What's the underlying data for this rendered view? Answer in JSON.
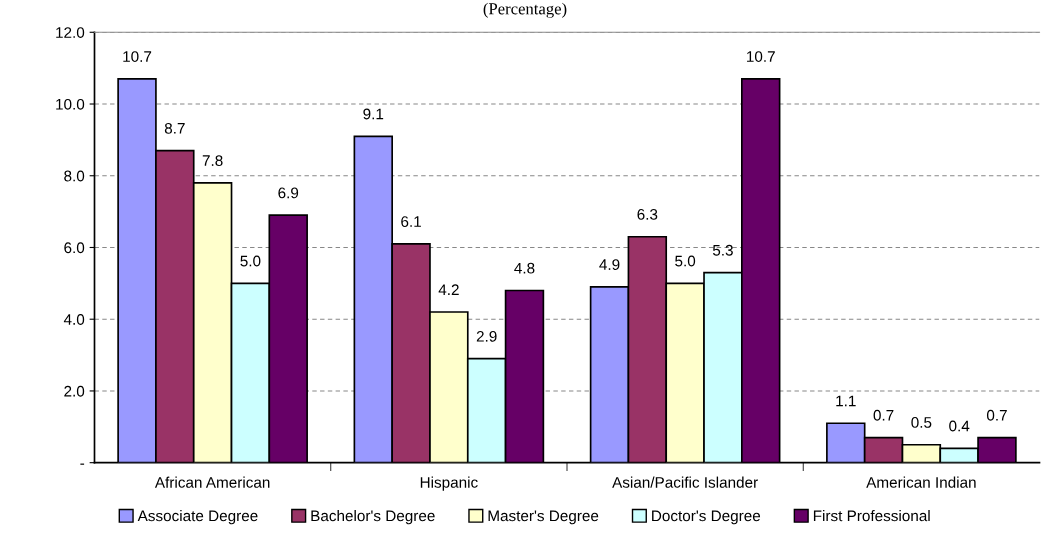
{
  "chart_data": {
    "type": "bar",
    "title": "(Percentage)",
    "categories": [
      "African American",
      "Hispanic",
      "Asian/Pacific Islander",
      "American Indian"
    ],
    "series": [
      {
        "name": "Associate Degree",
        "color": "#9999ff",
        "values": [
          10.7,
          9.1,
          4.9,
          1.1
        ],
        "value_labels": [
          "10.7",
          "9.1",
          "4.9",
          "1.1"
        ]
      },
      {
        "name": "Bachelor's Degree",
        "color": "#993366",
        "values": [
          8.7,
          6.1,
          6.3,
          0.7
        ],
        "value_labels": [
          "8.7",
          "6.1",
          "6.3",
          "0.7"
        ]
      },
      {
        "name": "Master's Degree",
        "color": "#ffffcc",
        "values": [
          7.8,
          4.2,
          5.0,
          0.5
        ],
        "value_labels": [
          "7.8",
          "4.2",
          "5.0",
          "0.5"
        ]
      },
      {
        "name": "Doctor's Degree",
        "color": "#ccffff",
        "values": [
          5.0,
          2.9,
          5.3,
          0.4
        ],
        "value_labels": [
          "5.0",
          "2.9",
          "5.3",
          "0.4"
        ]
      },
      {
        "name": "First Professional",
        "color": "#660066",
        "values": [
          6.9,
          4.8,
          10.7,
          0.7
        ],
        "value_labels": [
          "6.9",
          "4.8",
          "10.7",
          "0.7"
        ]
      }
    ],
    "ylim": [
      0,
      12
    ],
    "yticks": [
      {
        "value": 0,
        "label": "-"
      },
      {
        "value": 2,
        "label": "2.0"
      },
      {
        "value": 4,
        "label": "4.0"
      },
      {
        "value": 6,
        "label": "6.0"
      },
      {
        "value": 8,
        "label": "8.0"
      },
      {
        "value": 10,
        "label": "10.0"
      },
      {
        "value": 12,
        "label": "12.0"
      }
    ],
    "grid": "y",
    "legend": "bottom"
  }
}
